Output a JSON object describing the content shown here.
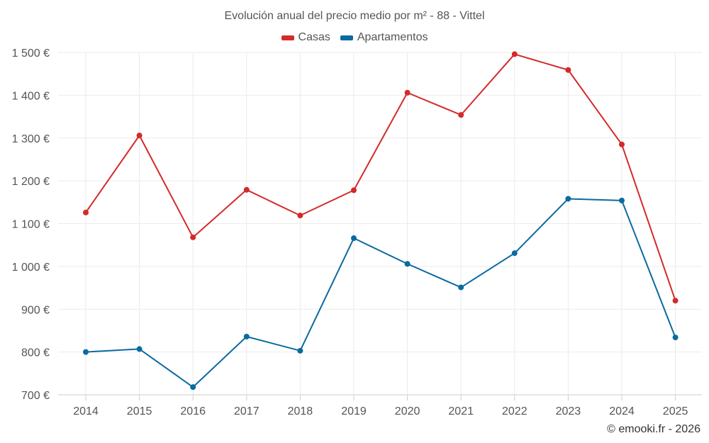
{
  "chart_data": {
    "type": "line",
    "title": "Evolución anual del precio medio por m² - 88 - Vittel",
    "xlabel": "",
    "ylabel": "",
    "categories": [
      "2014",
      "2015",
      "2016",
      "2017",
      "2018",
      "2019",
      "2020",
      "2021",
      "2022",
      "2023",
      "2024",
      "2025"
    ],
    "ylim": [
      700,
      1500
    ],
    "yticks": [
      700,
      800,
      900,
      1000,
      1100,
      1200,
      1300,
      1400,
      1500
    ],
    "ytick_labels": [
      "700 €",
      "800 €",
      "900 €",
      "1 000 €",
      "1 100 €",
      "1 200 €",
      "1 300 €",
      "1 400 €",
      "1 500 €"
    ],
    "grid": true,
    "legend_position": "top-center",
    "series": [
      {
        "name": "Casas",
        "color": "#d42a2a",
        "values": [
          1126,
          1306,
          1068,
          1179,
          1119,
          1178,
          1406,
          1354,
          1496,
          1459,
          1285,
          920
        ]
      },
      {
        "name": "Apartamentos",
        "color": "#0b6aa0",
        "values": [
          800,
          807,
          718,
          836,
          803,
          1066,
          1006,
          951,
          1031,
          1158,
          1154,
          834
        ]
      }
    ]
  },
  "legend": {
    "items": [
      {
        "label": "Casas",
        "color": "#d42a2a"
      },
      {
        "label": "Apartamentos",
        "color": "#0b6aa0"
      }
    ]
  },
  "credit": "© emooki.fr - 2026"
}
